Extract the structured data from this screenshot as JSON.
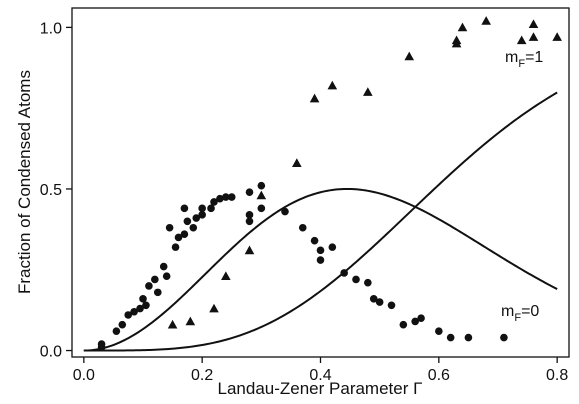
{
  "chart_data": {
    "type": "scatter",
    "title": "",
    "xlabel": "Landau-Zener Parameter Γ",
    "ylabel": "Fraction of Condensed Atoms",
    "xlim": [
      -0.02,
      0.82
    ],
    "ylim": [
      -0.02,
      1.06
    ],
    "xticks": [
      0.0,
      0.2,
      0.4,
      0.6,
      0.8
    ],
    "xtick_labels": [
      "0.0",
      "0.2",
      "0.4",
      "0.6",
      "0.8"
    ],
    "yticks": [
      0.0,
      0.5,
      1.0
    ],
    "ytick_labels": [
      "0.0",
      "0.5",
      "1.0"
    ],
    "grid": false,
    "legend": "none",
    "annotations": [
      {
        "main": "m",
        "sub": "F",
        "rest": "=1",
        "series": "triangles"
      },
      {
        "main": "m",
        "sub": "F",
        "rest": "=0",
        "series": "circles"
      }
    ],
    "series": [
      {
        "label": "m_F=0",
        "marker": "circle",
        "points": [
          [
            0.03,
            0.01
          ],
          [
            0.03,
            0.02
          ],
          [
            0.055,
            0.06
          ],
          [
            0.065,
            0.08
          ],
          [
            0.075,
            0.11
          ],
          [
            0.085,
            0.12
          ],
          [
            0.095,
            0.13
          ],
          [
            0.1,
            0.16
          ],
          [
            0.105,
            0.14
          ],
          [
            0.11,
            0.2
          ],
          [
            0.12,
            0.22
          ],
          [
            0.125,
            0.18
          ],
          [
            0.135,
            0.26
          ],
          [
            0.14,
            0.23
          ],
          [
            0.145,
            0.38
          ],
          [
            0.155,
            0.32
          ],
          [
            0.16,
            0.35
          ],
          [
            0.17,
            0.44
          ],
          [
            0.17,
            0.36
          ],
          [
            0.175,
            0.4
          ],
          [
            0.185,
            0.38
          ],
          [
            0.19,
            0.41
          ],
          [
            0.2,
            0.42
          ],
          [
            0.2,
            0.44
          ],
          [
            0.215,
            0.44
          ],
          [
            0.22,
            0.46
          ],
          [
            0.23,
            0.47
          ],
          [
            0.24,
            0.475
          ],
          [
            0.25,
            0.475
          ],
          [
            0.28,
            0.49
          ],
          [
            0.28,
            0.42
          ],
          [
            0.28,
            0.4
          ],
          [
            0.3,
            0.44
          ],
          [
            0.3,
            0.51
          ],
          [
            0.34,
            0.43
          ],
          [
            0.37,
            0.38
          ],
          [
            0.39,
            0.34
          ],
          [
            0.4,
            0.31
          ],
          [
            0.4,
            0.28
          ],
          [
            0.42,
            0.32
          ],
          [
            0.44,
            0.24
          ],
          [
            0.46,
            0.22
          ],
          [
            0.48,
            0.21
          ],
          [
            0.49,
            0.16
          ],
          [
            0.5,
            0.15
          ],
          [
            0.52,
            0.14
          ],
          [
            0.54,
            0.08
          ],
          [
            0.56,
            0.09
          ],
          [
            0.57,
            0.1
          ],
          [
            0.6,
            0.06
          ],
          [
            0.62,
            0.04
          ],
          [
            0.65,
            0.04
          ],
          [
            0.71,
            0.04
          ]
        ]
      },
      {
        "label": "m_F=1",
        "marker": "triangle",
        "points": [
          [
            0.15,
            0.08
          ],
          [
            0.18,
            0.09
          ],
          [
            0.22,
            0.13
          ],
          [
            0.24,
            0.23
          ],
          [
            0.28,
            0.31
          ],
          [
            0.3,
            0.48
          ],
          [
            0.36,
            0.58
          ],
          [
            0.39,
            0.78
          ],
          [
            0.42,
            0.82
          ],
          [
            0.48,
            0.8
          ],
          [
            0.55,
            0.91
          ],
          [
            0.63,
            0.95
          ],
          [
            0.63,
            0.96
          ],
          [
            0.64,
            1.0
          ],
          [
            0.68,
            1.02
          ],
          [
            0.74,
            0.96
          ],
          [
            0.76,
            1.01
          ],
          [
            0.76,
            0.97
          ],
          [
            0.8,
            0.97
          ]
        ]
      }
    ],
    "fit_curves": [
      {
        "label": "m_F=0 fit",
        "formula": "2*(1-exp(-3.5*x^2))*exp(-3.5*x^2)"
      },
      {
        "label": "m_F=1 fit",
        "formula": "(1-exp(-3.5*x^2))^2"
      }
    ]
  }
}
